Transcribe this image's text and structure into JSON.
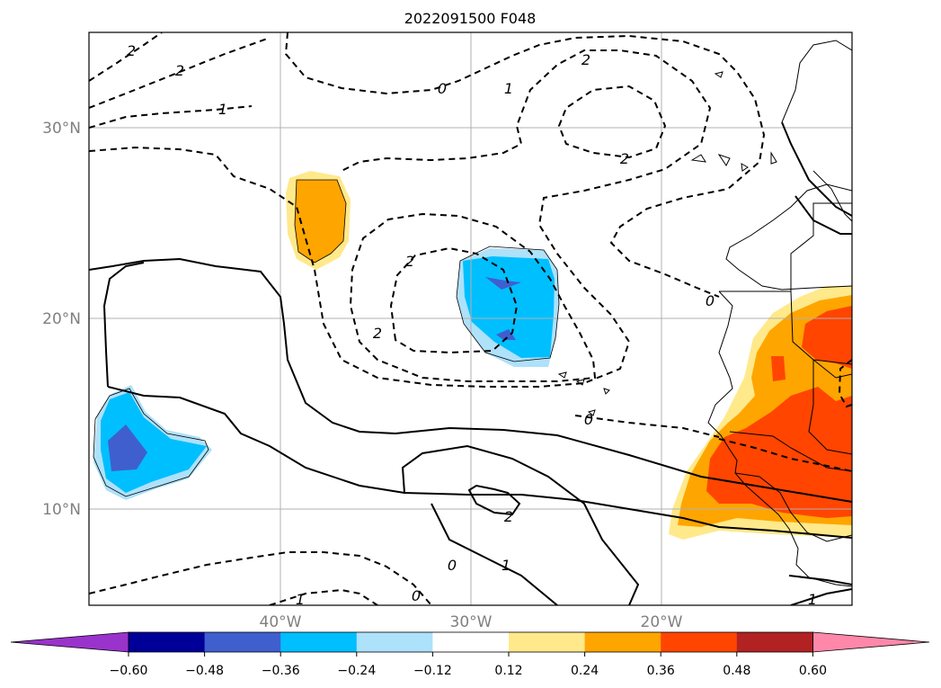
{
  "title": "2022091500 F048",
  "map": {
    "lat_labels": [
      "30°N",
      "20°N",
      "10°N"
    ],
    "lon_labels": [
      "40°W",
      "30°W",
      "20°W"
    ],
    "contour_labels": [
      "2",
      "2",
      "1",
      "0",
      "1",
      "2",
      "2",
      "2",
      "2",
      "0",
      "0",
      "0",
      "2",
      "1",
      "0",
      "1",
      "1"
    ]
  },
  "colorbar": {
    "ticks": [
      "−0.60",
      "−0.48",
      "−0.36",
      "−0.24",
      "−0.12",
      "0.12",
      "0.24",
      "0.36",
      "0.48",
      "0.60"
    ],
    "colors": [
      "#9933cc",
      "#000099",
      "#3f5fcf",
      "#00bfff",
      "#aee1fa",
      "#ffffff",
      "#ffe98a",
      "#ffa500",
      "#ff4500",
      "#b22222",
      "#ff88aa"
    ],
    "extend": "both"
  },
  "colors": {
    "grid": "#b0b0b0",
    "label": "#808080"
  }
}
